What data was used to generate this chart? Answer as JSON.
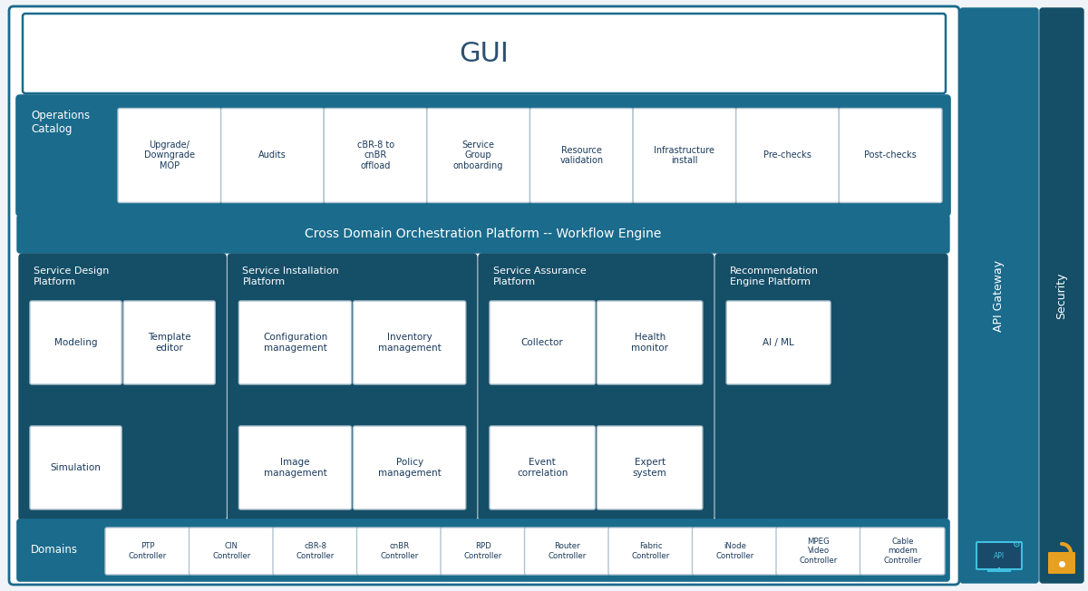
{
  "figsize": [
    12.0,
    6.52
  ],
  "dpi": 100,
  "bg_color": "#f0f4f8",
  "teal": "#1a6b8c",
  "teal_dark": "#154e67",
  "teal_platform": "#1a6278",
  "white": "#ffffff",
  "white_border": "#b0c4d0",
  "text_white": "#ffffff",
  "text_dark": "#1a3a5c",
  "gui_text": "#2c5070",
  "orange": "#e8a020",
  "cyan_icon": "#40c0e0",
  "gui_border": "#4a90a8",
  "sections": {
    "gui": {
      "label": "GUI",
      "fontsize": 22
    },
    "ops": {
      "label": "Operations\nCatalog",
      "fontsize": 8.5
    },
    "workflow": {
      "label": "Cross Domain Orchestration Platform -- Workflow Engine",
      "fontsize": 10
    },
    "domains": {
      "label": "Domains",
      "fontsize": 8.5
    },
    "api_gw": {
      "label": "API Gateway",
      "fontsize": 9
    },
    "security": {
      "label": "Security",
      "fontsize": 9
    }
  },
  "op_items": [
    "Upgrade/\nDowngrade\nMOP",
    "Audits",
    "cBR-8 to\ncnBR\noffload",
    "Service\nGroup\nonboarding",
    "Resource\nvalidation",
    "Infrastructure\ninstall",
    "Pre-checks",
    "Post-checks"
  ],
  "platforms": [
    {
      "title": "Service Design\nPlatform",
      "boxes": [
        {
          "label": "Modeling",
          "col": 0,
          "row": 1
        },
        {
          "label": "Template\neditor",
          "col": 1,
          "row": 1
        },
        {
          "label": "Simulation",
          "col": 0,
          "row": 0
        }
      ]
    },
    {
      "title": "Service Installation\nPlatform",
      "boxes": [
        {
          "label": "Configuration\nmanagement",
          "col": 0,
          "row": 1
        },
        {
          "label": "Inventory\nmanagement",
          "col": 1,
          "row": 1
        },
        {
          "label": "Image\nmanagement",
          "col": 0,
          "row": 0
        },
        {
          "label": "Policy\nmanagement",
          "col": 1,
          "row": 0
        }
      ]
    },
    {
      "title": "Service Assurance\nPlatform",
      "boxes": [
        {
          "label": "Collector",
          "col": 0,
          "row": 1
        },
        {
          "label": "Health\nmonitor",
          "col": 1,
          "row": 1
        },
        {
          "label": "Event\ncorrelation",
          "col": 0,
          "row": 0
        },
        {
          "label": "Expert\nsystem",
          "col": 1,
          "row": 0
        }
      ]
    },
    {
      "title": "Recommendation\nEngine Platform",
      "boxes": [
        {
          "label": "AI / ML",
          "col": 0,
          "row": 1
        }
      ]
    }
  ],
  "domain_items": [
    "PTP\nController",
    "CIN\nController",
    "cBR-8\nController",
    "cnBR\nController",
    "RPD\nController",
    "Router\nController",
    "Fabric\nController",
    "iNode\nController",
    "MPEG\nVideo\nController",
    "Cable\nmodem\nController"
  ]
}
